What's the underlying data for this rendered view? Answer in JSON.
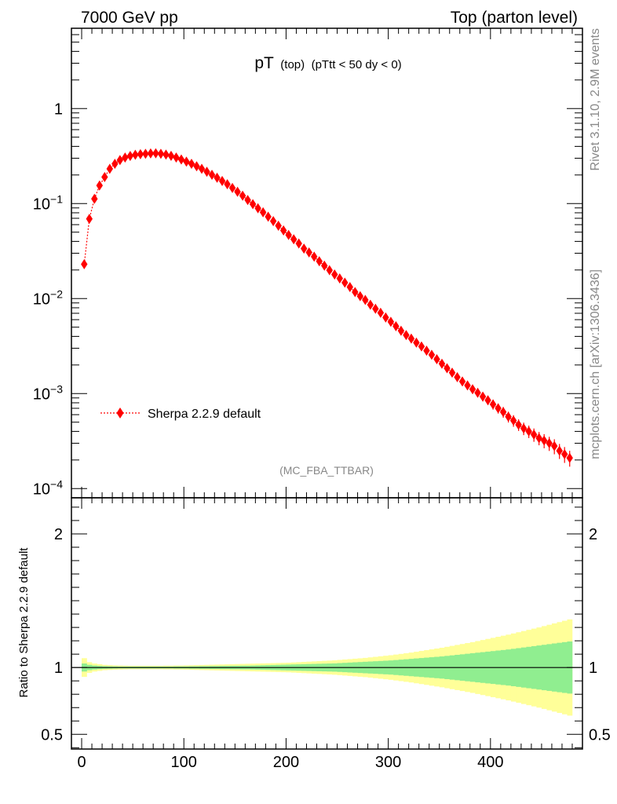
{
  "header": {
    "left": "7000 GeV pp",
    "right": "Top (parton level)"
  },
  "side_labels": {
    "rivet": "Rivet 3.1.10,  2.9M events",
    "mcplots": "mcplots.cern.ch [arXiv:1306.3436]"
  },
  "chart_data": [
    {
      "type": "scatter",
      "title_main": "pT",
      "title_sub1": "(top)",
      "title_sub2": "(pTtt < 50 dy < 0)",
      "watermark": "(MC_FBA_TTBAR)",
      "yscale": "log",
      "ylim": [
        8e-05,
        7
      ],
      "xlim": [
        -10,
        490
      ],
      "y_ticks": [
        {
          "base": "1",
          "exp": ""
        },
        {
          "base": "10",
          "exp": "−1"
        },
        {
          "base": "10",
          "exp": "−2"
        },
        {
          "base": "10",
          "exp": "−3"
        },
        {
          "base": "10",
          "exp": "−4"
        }
      ],
      "legend": {
        "label": "Sherpa 2.2.9 default",
        "position": "lower-left"
      },
      "series": [
        {
          "name": "Sherpa 2.2.9 default",
          "color": "#ff0000",
          "marker": "diamond",
          "x": [
            2.5,
            7.5,
            12.5,
            17.5,
            22.5,
            27.5,
            32.5,
            37.5,
            42.5,
            47.5,
            52.5,
            57.5,
            62.5,
            67.5,
            72.5,
            77.5,
            82.5,
            87.5,
            92.5,
            97.5,
            102.5,
            107.5,
            112.5,
            117.5,
            122.5,
            127.5,
            132.5,
            137.5,
            142.5,
            147.5,
            152.5,
            157.5,
            162.5,
            167.5,
            172.5,
            177.5,
            182.5,
            187.5,
            192.5,
            197.5,
            202.5,
            207.5,
            212.5,
            217.5,
            222.5,
            227.5,
            232.5,
            237.5,
            242.5,
            247.5,
            252.5,
            257.5,
            262.5,
            267.5,
            272.5,
            277.5,
            282.5,
            287.5,
            292.5,
            297.5,
            302.5,
            307.5,
            312.5,
            317.5,
            322.5,
            327.5,
            332.5,
            337.5,
            342.5,
            347.5,
            352.5,
            357.5,
            362.5,
            367.5,
            372.5,
            377.5,
            382.5,
            387.5,
            392.5,
            397.5,
            402.5,
            407.5,
            412.5,
            417.5,
            422.5,
            427.5,
            432.5,
            437.5,
            442.5,
            447.5,
            452.5,
            457.5,
            462.5,
            467.5,
            472.5,
            477.5
          ],
          "y": [
            0.023,
            0.069,
            0.112,
            0.155,
            0.19,
            0.232,
            0.262,
            0.287,
            0.305,
            0.317,
            0.326,
            0.331,
            0.334,
            0.337,
            0.338,
            0.334,
            0.328,
            0.318,
            0.305,
            0.291,
            0.276,
            0.262,
            0.247,
            0.232,
            0.216,
            0.201,
            0.187,
            0.173,
            0.16,
            0.146,
            0.133,
            0.121,
            0.109,
            0.0985,
            0.0892,
            0.081,
            0.0727,
            0.0654,
            0.0584,
            0.0521,
            0.0467,
            0.0421,
            0.038,
            0.0336,
            0.0306,
            0.0276,
            0.0247,
            0.0222,
            0.0199,
            0.0179,
            0.0163,
            0.0147,
            0.0132,
            0.0117,
            0.0106,
            0.00968,
            0.00861,
            0.00782,
            0.00708,
            0.00632,
            0.00569,
            0.00511,
            0.00458,
            0.00413,
            0.00379,
            0.00344,
            0.00313,
            0.00283,
            0.00256,
            0.0023,
            0.00206,
            0.00185,
            0.00166,
            0.00149,
            0.00134,
            0.00122,
            0.00111,
            0.00102,
            0.00093,
            0.00085,
            0.00077,
            0.0007,
            0.00064,
            0.00057,
            0.00052,
            0.00047,
            0.00043,
            0.0004,
            0.00037,
            0.00034,
            0.00032,
            0.0003,
            0.00028,
            0.00025,
            0.00023,
            0.00021
          ],
          "y_err_rel": [
            0.01,
            0.01,
            0.01,
            0.01,
            0.01,
            0.01,
            0.01,
            0.01,
            0.01,
            0.01,
            0.01,
            0.01,
            0.01,
            0.01,
            0.01,
            0.01,
            0.01,
            0.01,
            0.01,
            0.01,
            0.01,
            0.01,
            0.01,
            0.01,
            0.01,
            0.01,
            0.01,
            0.01,
            0.01,
            0.01,
            0.01,
            0.01,
            0.01,
            0.01,
            0.01,
            0.01,
            0.01,
            0.01,
            0.02,
            0.02,
            0.02,
            0.02,
            0.02,
            0.02,
            0.02,
            0.02,
            0.02,
            0.02,
            0.02,
            0.03,
            0.03,
            0.03,
            0.03,
            0.03,
            0.03,
            0.03,
            0.04,
            0.04,
            0.04,
            0.04,
            0.04,
            0.05,
            0.05,
            0.05,
            0.05,
            0.06,
            0.06,
            0.06,
            0.07,
            0.07,
            0.07,
            0.08,
            0.08,
            0.08,
            0.09,
            0.09,
            0.1,
            0.1,
            0.11,
            0.11,
            0.12,
            0.12,
            0.13,
            0.13,
            0.14,
            0.14,
            0.15,
            0.15,
            0.16,
            0.16,
            0.17,
            0.17,
            0.18,
            0.18,
            0.19,
            0.19
          ]
        }
      ]
    },
    {
      "type": "area",
      "ylabel": "Ratio to Sherpa 2.2.9 default",
      "ylim": [
        0.39,
        2.27
      ],
      "xlim": [
        -10,
        490
      ],
      "y_ticks": [
        "2",
        "1",
        "0.5"
      ],
      "x_ticks": [
        "0",
        "100",
        "200",
        "300",
        "400"
      ],
      "x_tick_values": [
        0,
        100,
        200,
        300,
        400
      ],
      "reference_line": 1,
      "bands": [
        {
          "name": "stat_syst",
          "color": "#ffff99",
          "half_width": [
            0.07,
            0.04,
            0.03,
            0.025,
            0.02,
            0.018,
            0.016,
            0.015,
            0.014,
            0.013,
            0.013,
            0.013,
            0.013,
            0.013,
            0.013,
            0.013,
            0.014,
            0.014,
            0.015,
            0.015,
            0.016,
            0.017,
            0.018,
            0.019,
            0.02,
            0.021,
            0.022,
            0.023,
            0.024,
            0.025,
            0.026,
            0.027,
            0.028,
            0.029,
            0.03,
            0.031,
            0.032,
            0.033,
            0.034,
            0.035,
            0.036,
            0.038,
            0.04,
            0.042,
            0.044,
            0.046,
            0.048,
            0.05,
            0.052,
            0.054,
            0.057,
            0.06,
            0.063,
            0.066,
            0.069,
            0.072,
            0.076,
            0.08,
            0.084,
            0.088,
            0.092,
            0.097,
            0.102,
            0.107,
            0.112,
            0.118,
            0.124,
            0.13,
            0.136,
            0.142,
            0.148,
            0.155,
            0.162,
            0.169,
            0.176,
            0.183,
            0.19,
            0.198,
            0.206,
            0.214,
            0.222,
            0.23,
            0.238,
            0.246,
            0.255,
            0.264,
            0.273,
            0.282,
            0.291,
            0.3,
            0.31,
            0.32,
            0.33,
            0.34,
            0.35,
            0.36
          ]
        },
        {
          "name": "stat",
          "color": "#90ee90",
          "half_width": [
            0.03,
            0.02,
            0.015,
            0.012,
            0.01,
            0.009,
            0.008,
            0.007,
            0.007,
            0.007,
            0.007,
            0.007,
            0.007,
            0.007,
            0.007,
            0.007,
            0.007,
            0.007,
            0.008,
            0.008,
            0.008,
            0.009,
            0.009,
            0.01,
            0.01,
            0.011,
            0.011,
            0.012,
            0.012,
            0.013,
            0.013,
            0.014,
            0.014,
            0.015,
            0.016,
            0.017,
            0.018,
            0.019,
            0.02,
            0.021,
            0.022,
            0.023,
            0.024,
            0.025,
            0.026,
            0.027,
            0.028,
            0.029,
            0.03,
            0.031,
            0.033,
            0.035,
            0.037,
            0.039,
            0.041,
            0.043,
            0.045,
            0.047,
            0.049,
            0.051,
            0.053,
            0.056,
            0.059,
            0.062,
            0.065,
            0.068,
            0.071,
            0.074,
            0.077,
            0.08,
            0.083,
            0.087,
            0.091,
            0.095,
            0.099,
            0.103,
            0.107,
            0.111,
            0.115,
            0.119,
            0.123,
            0.127,
            0.131,
            0.135,
            0.14,
            0.145,
            0.15,
            0.155,
            0.16,
            0.165,
            0.17,
            0.175,
            0.18,
            0.185,
            0.19,
            0.195
          ]
        }
      ]
    }
  ]
}
